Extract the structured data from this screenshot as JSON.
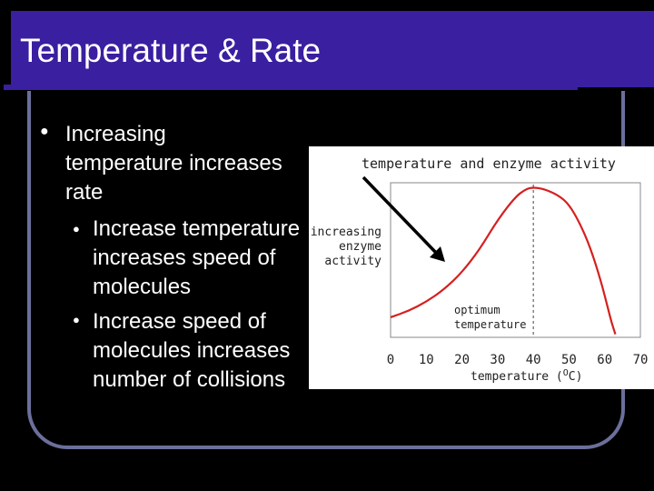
{
  "slide": {
    "title": "Temperature & Rate",
    "bullet_main": [
      "Increasing",
      "temperature increases",
      "rate"
    ],
    "sub_bullet_1": [
      "Increase temperature",
      "increases speed of",
      "molecules"
    ],
    "sub_bullet_2": [
      "Increase speed of",
      "molecules increases",
      "number of collisions"
    ]
  },
  "chart_data": {
    "type": "line",
    "title": "temperature and enzyme activity",
    "xlabel": "temperature (",
    "xlabel_sup": "O",
    "xlabel_end": "C)",
    "ylabel": [
      "increasing",
      "enzyme",
      "activity"
    ],
    "x_ticks": [
      "0",
      "10",
      "20",
      "30",
      "40",
      "50",
      "60",
      "70"
    ],
    "xlim": [
      0,
      70
    ],
    "ylim": [
      0,
      1
    ],
    "annotation": [
      "optimum",
      "temperature"
    ],
    "optimum_x": 40,
    "series": [
      {
        "color": "#d42020",
        "x": [
          0,
          5,
          10,
          15,
          20,
          25,
          30,
          35,
          38,
          40,
          43,
          47,
          50,
          53,
          56,
          59,
          61,
          62,
          63
        ],
        "y": [
          0.13,
          0.17,
          0.23,
          0.31,
          0.42,
          0.57,
          0.76,
          0.91,
          0.96,
          0.97,
          0.96,
          0.92,
          0.86,
          0.74,
          0.58,
          0.36,
          0.18,
          0.09,
          0.02
        ]
      }
    ],
    "line_color": "#d42020",
    "arrow_color": "#000000"
  },
  "colors": {
    "title_band": "#3a1fa0",
    "frame": "#6b6f9a",
    "background": "#000000",
    "text": "#ffffff"
  }
}
